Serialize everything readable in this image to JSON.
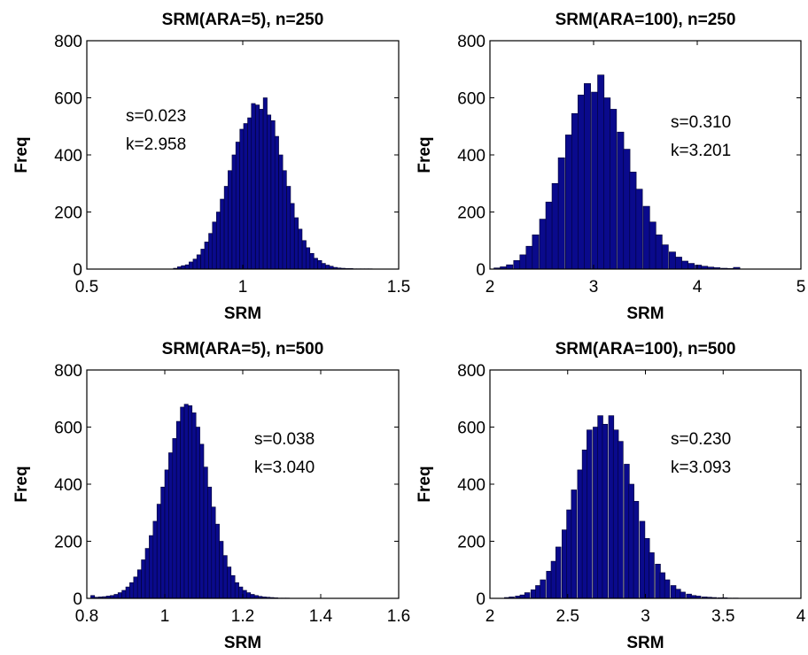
{
  "chart_data": [
    {
      "type": "bar",
      "title": "SRM(ARA=5), n=250",
      "xlabel": "SRM",
      "ylabel": "Freq",
      "xlim": [
        0.5,
        1.5
      ],
      "ylim": [
        0,
        800
      ],
      "xticks": [
        "0.5",
        "1",
        "1.5"
      ],
      "yticks": [
        "0",
        "200",
        "400",
        "600",
        "800"
      ],
      "annotations": [
        "s=0.023",
        "k=2.958"
      ],
      "bin_width": 0.0125,
      "x": [
        0.784,
        0.797,
        0.809,
        0.822,
        0.834,
        0.847,
        0.859,
        0.872,
        0.884,
        0.897,
        0.909,
        0.922,
        0.934,
        0.947,
        0.959,
        0.972,
        0.984,
        0.997,
        1.009,
        1.022,
        1.034,
        1.047,
        1.059,
        1.072,
        1.084,
        1.097,
        1.109,
        1.122,
        1.134,
        1.147,
        1.159,
        1.172,
        1.184,
        1.197,
        1.209,
        1.222,
        1.234,
        1.247,
        1.259,
        1.272,
        1.284,
        1.297,
        1.309,
        1.322,
        1.334,
        1.347,
        1.359,
        1.372,
        1.384,
        1.397,
        1.409
      ],
      "values": [
        3,
        8,
        12,
        15,
        25,
        35,
        50,
        70,
        95,
        125,
        165,
        200,
        245,
        290,
        345,
        400,
        445,
        490,
        510,
        530,
        580,
        575,
        560,
        600,
        540,
        520,
        465,
        400,
        345,
        290,
        230,
        180,
        140,
        100,
        75,
        55,
        38,
        30,
        20,
        14,
        10,
        6,
        4,
        3,
        2,
        2,
        1,
        1,
        1,
        1,
        1
      ]
    },
    {
      "type": "bar",
      "title": "SRM(ARA=100), n=250",
      "xlabel": "SRM",
      "ylabel": "Freq",
      "xlim": [
        2,
        5
      ],
      "ylim": [
        0,
        800
      ],
      "xticks": [
        "2",
        "3",
        "4",
        "5"
      ],
      "yticks": [
        "0",
        "200",
        "400",
        "600",
        "800"
      ],
      "annotations": [
        "s=0.310",
        "k=3.201"
      ],
      "bin_width": 0.0625,
      "x": [
        2.07,
        2.13,
        2.19,
        2.26,
        2.32,
        2.38,
        2.44,
        2.51,
        2.57,
        2.63,
        2.69,
        2.76,
        2.82,
        2.88,
        2.94,
        3.01,
        3.07,
        3.13,
        3.19,
        3.26,
        3.32,
        3.38,
        3.44,
        3.51,
        3.57,
        3.63,
        3.69,
        3.76,
        3.82,
        3.88,
        3.94,
        4.01,
        4.07,
        4.13,
        4.19,
        4.26,
        4.32,
        4.38
      ],
      "values": [
        4,
        8,
        15,
        30,
        50,
        80,
        120,
        175,
        235,
        300,
        390,
        470,
        545,
        610,
        650,
        620,
        680,
        600,
        560,
        480,
        420,
        340,
        280,
        220,
        165,
        120,
        85,
        60,
        42,
        28,
        20,
        14,
        10,
        7,
        5,
        3,
        2,
        6
      ]
    },
    {
      "type": "bar",
      "title": "SRM(ARA=5), n=500",
      "xlabel": "SRM",
      "ylabel": "Freq",
      "xlim": [
        0.8,
        1.6
      ],
      "ylim": [
        0,
        800
      ],
      "xticks": [
        "0.8",
        "1",
        "1.2",
        "1.4",
        "1.6"
      ],
      "yticks": [
        "0",
        "200",
        "400",
        "600",
        "800"
      ],
      "annotations": [
        "s=0.038",
        "k=3.040"
      ],
      "bin_width": 0.01,
      "x": [
        0.815,
        0.825,
        0.835,
        0.845,
        0.855,
        0.865,
        0.875,
        0.885,
        0.895,
        0.905,
        0.915,
        0.925,
        0.935,
        0.945,
        0.955,
        0.965,
        0.975,
        0.985,
        0.995,
        1.005,
        1.015,
        1.025,
        1.035,
        1.045,
        1.055,
        1.065,
        1.075,
        1.085,
        1.095,
        1.105,
        1.115,
        1.125,
        1.135,
        1.145,
        1.155,
        1.165,
        1.175,
        1.185,
        1.195,
        1.205,
        1.215,
        1.225,
        1.235,
        1.245,
        1.255,
        1.265,
        1.275,
        1.285,
        1.295,
        1.305,
        1.315
      ],
      "values": [
        10,
        4,
        5,
        6,
        8,
        10,
        14,
        20,
        28,
        40,
        55,
        75,
        100,
        135,
        175,
        220,
        270,
        330,
        390,
        450,
        510,
        560,
        620,
        670,
        680,
        675,
        650,
        600,
        540,
        460,
        390,
        320,
        260,
        200,
        150,
        110,
        80,
        55,
        40,
        28,
        20,
        14,
        10,
        7,
        5,
        4,
        3,
        2,
        1,
        1,
        1
      ]
    },
    {
      "type": "bar",
      "title": "SRM(ARA=100), n=500",
      "xlabel": "SRM",
      "ylabel": "Freq",
      "xlim": [
        2,
        4
      ],
      "ylim": [
        0,
        800
      ],
      "xticks": [
        "2",
        "2.5",
        "3",
        "3.5",
        "4"
      ],
      "yticks": [
        "0",
        "200",
        "400",
        "600",
        "800"
      ],
      "annotations": [
        "s=0.230",
        "k=3.093"
      ],
      "bin_width": 0.0333,
      "x": [
        2.11,
        2.14,
        2.18,
        2.21,
        2.24,
        2.28,
        2.31,
        2.34,
        2.38,
        2.41,
        2.44,
        2.48,
        2.51,
        2.54,
        2.58,
        2.61,
        2.64,
        2.68,
        2.71,
        2.74,
        2.78,
        2.81,
        2.84,
        2.88,
        2.91,
        2.94,
        2.98,
        3.01,
        3.04,
        3.08,
        3.11,
        3.14,
        3.18,
        3.21,
        3.24,
        3.28,
        3.31,
        3.34,
        3.38,
        3.41,
        3.44,
        3.48,
        3.51,
        3.54,
        3.58
      ],
      "values": [
        3,
        5,
        8,
        12,
        20,
        30,
        45,
        65,
        95,
        130,
        180,
        240,
        310,
        380,
        450,
        520,
        590,
        600,
        640,
        610,
        640,
        590,
        550,
        470,
        400,
        340,
        270,
        210,
        160,
        120,
        90,
        65,
        45,
        32,
        22,
        15,
        10,
        8,
        5,
        4,
        3,
        2,
        2,
        1,
        1
      ]
    }
  ]
}
